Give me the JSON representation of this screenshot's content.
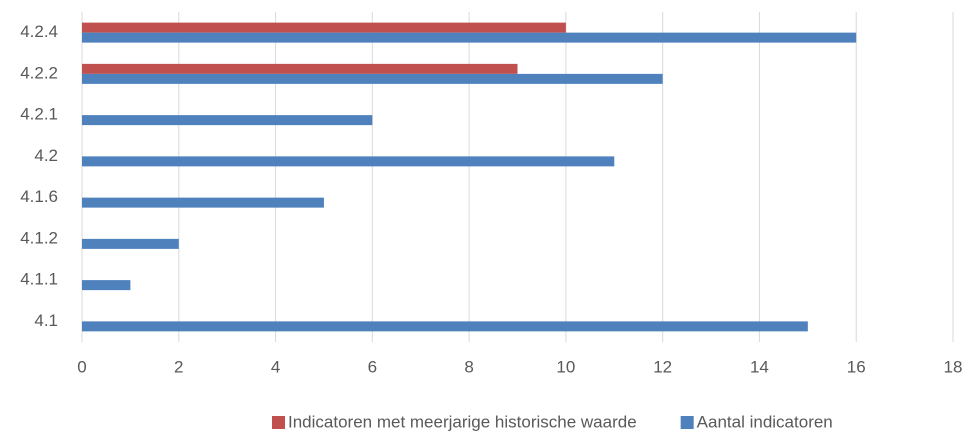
{
  "chart_data": {
    "type": "hbar",
    "categories": [
      "4.1",
      "4.1.1",
      "4.1.2",
      "4.1.6",
      "4.2",
      "4.2.1",
      "4.2.2",
      "4.2.4"
    ],
    "series": [
      {
        "name": "Indicatoren met meerjarige historische waarde",
        "color": "#c0504d",
        "values": [
          null,
          null,
          null,
          null,
          null,
          null,
          9,
          10
        ]
      },
      {
        "name": "Aantal indicatoren",
        "color": "#4f81bd",
        "values": [
          15,
          1,
          2,
          5,
          11,
          6,
          12,
          16
        ]
      }
    ],
    "xlim": [
      0,
      18
    ],
    "xticks": [
      0,
      2,
      4,
      6,
      8,
      10,
      12,
      14,
      16,
      18
    ],
    "grid": true,
    "legend": "bottom"
  }
}
